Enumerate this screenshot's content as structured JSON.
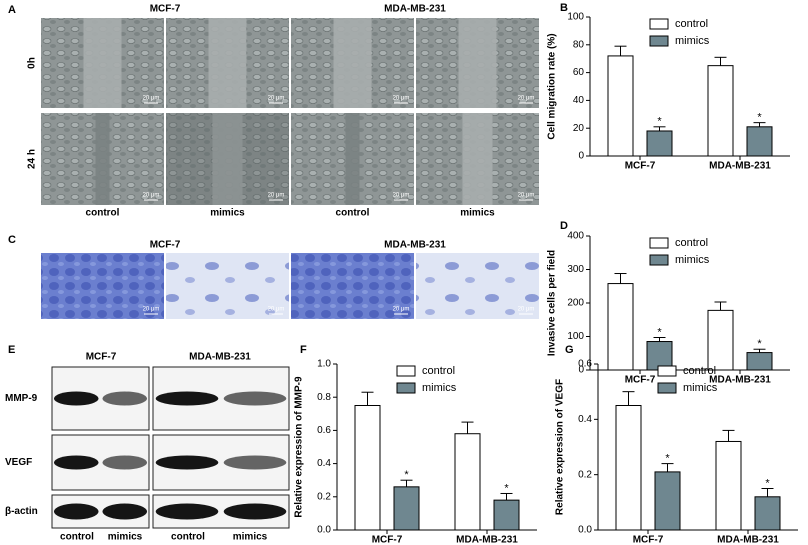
{
  "panel_a": {
    "label": "A",
    "columns": [
      "MCF-7",
      "MDA-MB-231"
    ],
    "rows": [
      "0h",
      "24 h"
    ],
    "conditions": [
      "control",
      "mimics",
      "control",
      "mimics"
    ],
    "scale_bars": [
      "20 μm",
      "20 μm",
      "20 μm",
      "20 μm",
      "20 μm",
      "20 μm",
      "20 μm",
      "20 μm"
    ]
  },
  "panel_c": {
    "label": "C",
    "columns": [
      "MCF-7",
      "MDA-MB-231"
    ],
    "scale_bars": [
      "20 μm",
      "20 μm",
      "20 μm",
      "20 μm"
    ]
  },
  "panel_e": {
    "label": "E",
    "columns": [
      "MCF-7",
      "MDA-MB-231"
    ],
    "rows": [
      "MMP-9",
      "VEGF",
      "β-actin"
    ],
    "conditions": [
      "control",
      "mimics",
      "control",
      "mimics"
    ]
  },
  "chart_data": [
    {
      "type": "bar",
      "panel_label": "B",
      "y_label": "Cell migration rate (%)",
      "categories": [
        "MCF-7",
        "MDA-MB-231"
      ],
      "ylim": [
        0,
        100
      ],
      "yticks": [
        0,
        20,
        40,
        60,
        80,
        100
      ],
      "legend": "top",
      "series": [
        {
          "name": "control",
          "color": "#ffffff",
          "values": [
            72,
            65
          ],
          "errors": [
            7,
            6
          ]
        },
        {
          "name": "mimics",
          "color": "#6f8790",
          "values": [
            18,
            21
          ],
          "errors": [
            3,
            3
          ],
          "annotations": [
            "*",
            "*"
          ]
        }
      ]
    },
    {
      "type": "bar",
      "panel_label": "D",
      "y_label": "Invasive cells per field",
      "categories": [
        "MCF-7",
        "MDA-MB-231"
      ],
      "ylim": [
        0,
        400
      ],
      "yticks": [
        0,
        100,
        200,
        300,
        400
      ],
      "legend": "top",
      "series": [
        {
          "name": "control",
          "color": "#ffffff",
          "values": [
            258,
            178
          ],
          "errors": [
            30,
            25
          ]
        },
        {
          "name": "mimics",
          "color": "#6f8790",
          "values": [
            85,
            52
          ],
          "errors": [
            12,
            10
          ],
          "annotations": [
            "*",
            "*"
          ]
        }
      ]
    },
    {
      "type": "bar",
      "panel_label": "F",
      "y_label": "Relative expression of MMP-9",
      "categories": [
        "MCF-7",
        "MDA-MB-231"
      ],
      "ylim": [
        0,
        1.0
      ],
      "yticks": [
        {
          "value": 0,
          "label": "0.0"
        },
        0.2,
        0.4,
        0.6,
        0.8,
        {
          "value": 1.0,
          "label": "1.0"
        }
      ],
      "legend": "top",
      "series": [
        {
          "name": "control",
          "color": "#ffffff",
          "values": [
            0.75,
            0.58
          ],
          "errors": [
            0.08,
            0.07
          ]
        },
        {
          "name": "mimics",
          "color": "#6f8790",
          "values": [
            0.26,
            0.18
          ],
          "errors": [
            0.04,
            0.04
          ],
          "annotations": [
            "*",
            "*"
          ]
        }
      ]
    },
    {
      "type": "bar",
      "panel_label": "G",
      "y_label": "Relative expression of VEGF",
      "categories": [
        "MCF-7",
        "MDA-MB-231"
      ],
      "ylim": [
        0,
        0.6
      ],
      "yticks": [
        {
          "value": 0,
          "label": "0.0"
        },
        0.2,
        0.4,
        0.6
      ],
      "legend": "top",
      "series": [
        {
          "name": "control",
          "color": "#ffffff",
          "values": [
            0.45,
            0.32
          ],
          "errors": [
            0.05,
            0.04
          ]
        },
        {
          "name": "mimics",
          "color": "#6f8790",
          "values": [
            0.21,
            0.12
          ],
          "errors": [
            0.03,
            0.03
          ],
          "annotations": [
            "*",
            "*"
          ]
        }
      ]
    }
  ]
}
